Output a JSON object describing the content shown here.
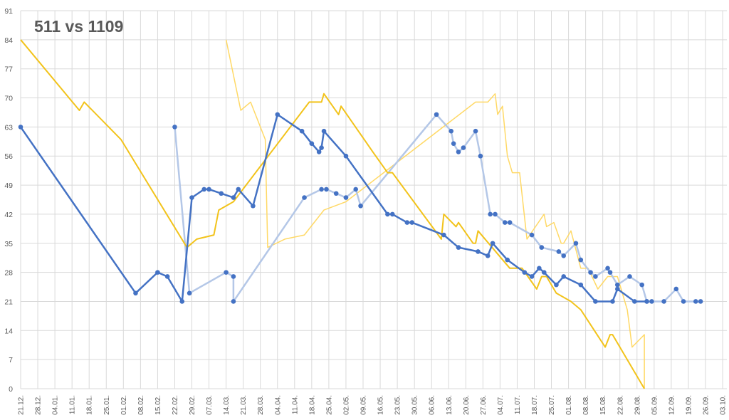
{
  "chart_data": {
    "type": "line",
    "title": "511 vs 1109",
    "xlabel": "",
    "ylabel": "",
    "ylim": [
      0,
      91
    ],
    "yticks": [
      0,
      7,
      14,
      21,
      28,
      35,
      42,
      49,
      56,
      63,
      70,
      77,
      84,
      91
    ],
    "xticks": [
      "21.12.",
      "28.12.",
      "04.01.",
      "11.01.",
      "18.01.",
      "25.01.",
      "01.02.",
      "08.02.",
      "15.02.",
      "22.02.",
      "29.02.",
      "07.03.",
      "14.03.",
      "21.03.",
      "28.03.",
      "04.04.",
      "11.04.",
      "18.04.",
      "25.04.",
      "02.05.",
      "09.05.",
      "16.05.",
      "23.05.",
      "30.05.",
      "06.06.",
      "13.06.",
      "20.06.",
      "27.06.",
      "04.07.",
      "11.07.",
      "18.07.",
      "25.07.",
      "01.08.",
      "08.08.",
      "15.08.",
      "22.08.",
      "29.08.",
      "05.09.",
      "12.09.",
      "19.09.",
      "26.09.",
      "03.10."
    ],
    "grid": true,
    "legend": "none",
    "series": [
      {
        "color": "#4472C4",
        "width": 2.5,
        "markers": true,
        "points": [
          [
            "21.12.",
            63
          ],
          [
            "06.02.",
            23
          ],
          [
            "15.02.",
            28
          ],
          [
            "19.02.",
            27
          ],
          [
            "25.02.",
            21
          ],
          [
            "29.02.",
            46
          ],
          [
            "05.03.",
            48
          ],
          [
            "07.03.",
            48
          ],
          [
            "12.03.",
            47
          ],
          [
            "17.03.",
            46
          ],
          [
            "19.03.",
            48
          ],
          [
            "25.03.",
            44
          ],
          [
            "04.04.",
            66
          ],
          [
            "14.04.",
            62
          ],
          [
            "18.04.",
            59
          ],
          [
            "21.04.",
            57
          ],
          [
            "22.04.",
            58
          ],
          [
            "23.04.",
            62
          ],
          [
            "02.05.",
            56
          ],
          [
            "19.05.",
            42
          ],
          [
            "21.05.",
            42
          ],
          [
            "27.05.",
            40
          ],
          [
            "29.05.",
            40
          ],
          [
            "11.06.",
            37
          ],
          [
            "17.06.",
            34
          ],
          [
            "25.06.",
            33
          ],
          [
            "29.06.",
            32
          ],
          [
            "01.07.",
            35
          ],
          [
            "07.07.",
            31
          ],
          [
            "14.07.",
            28
          ],
          [
            "17.07.",
            27
          ],
          [
            "20.07.",
            29
          ],
          [
            "22.07.",
            28
          ],
          [
            "27.07.",
            25
          ],
          [
            "30.07.",
            27
          ],
          [
            "06.08.",
            25
          ],
          [
            "12.08.",
            21
          ],
          [
            "19.08.",
            21
          ],
          [
            "21.08.",
            24
          ],
          [
            "28.08.",
            21
          ],
          [
            "02.09.",
            21
          ]
        ]
      },
      {
        "color": "#B4C7E7",
        "width": 2.5,
        "markers": true,
        "points": [
          [
            "22.02.",
            63
          ],
          [
            "28.02.",
            23
          ],
          [
            "14.03.",
            28
          ],
          [
            "17.03.",
            27
          ],
          [
            "17.03.",
            21
          ],
          [
            "15.04.",
            46
          ],
          [
            "22.04.",
            48
          ],
          [
            "24.04.",
            48
          ],
          [
            "28.04.",
            47
          ],
          [
            "02.05.",
            46
          ],
          [
            "06.05.",
            48
          ],
          [
            "08.05.",
            44
          ],
          [
            "08.06.",
            66
          ],
          [
            "14.06.",
            62
          ],
          [
            "15.06.",
            59
          ],
          [
            "17.06.",
            57
          ],
          [
            "19.06.",
            58
          ],
          [
            "24.06.",
            62
          ],
          [
            "26.06.",
            56
          ],
          [
            "30.06.",
            42
          ],
          [
            "02.07.",
            42
          ],
          [
            "06.07.",
            40
          ],
          [
            "08.07.",
            40
          ],
          [
            "17.07.",
            37
          ],
          [
            "21.07.",
            34
          ],
          [
            "28.07.",
            33
          ],
          [
            "30.07.",
            32
          ],
          [
            "04.08.",
            35
          ],
          [
            "06.08.",
            31
          ],
          [
            "10.08.",
            28
          ],
          [
            "12.08.",
            27
          ],
          [
            "17.08.",
            29
          ],
          [
            "18.08.",
            28
          ],
          [
            "21.08.",
            25
          ],
          [
            "26.08.",
            27
          ],
          [
            "31.08.",
            25
          ],
          [
            "02.09.",
            21
          ],
          [
            "04.09.",
            21
          ],
          [
            "09.09.",
            21
          ],
          [
            "14.09.",
            24
          ],
          [
            "17.09.",
            21
          ],
          [
            "22.09.",
            21
          ],
          [
            "24.09.",
            21
          ]
        ]
      },
      {
        "color": "#F2C31B",
        "width": 2,
        "markers": false,
        "points": [
          [
            "21.12.",
            84
          ],
          [
            "14.01.",
            67
          ],
          [
            "16.01.",
            69
          ],
          [
            "31.01.",
            60
          ],
          [
            "27.02.",
            34
          ],
          [
            "02.03.",
            36
          ],
          [
            "09.03.",
            37
          ],
          [
            "11.03.",
            43
          ],
          [
            "17.03.",
            45
          ],
          [
            "17.04.",
            69
          ],
          [
            "22.04.",
            69
          ],
          [
            "23.04.",
            71
          ],
          [
            "29.04.",
            66
          ],
          [
            "30.04.",
            68
          ],
          [
            "13.05.",
            57
          ],
          [
            "19.05.",
            52
          ],
          [
            "21.05.",
            52
          ],
          [
            "10.06.",
            36
          ],
          [
            "11.06.",
            42
          ],
          [
            "16.06.",
            39
          ],
          [
            "17.06.",
            40
          ],
          [
            "23.06.",
            35
          ],
          [
            "24.06.",
            35
          ],
          [
            "25.06.",
            38
          ],
          [
            "08.07.",
            29
          ],
          [
            "13.07.",
            29
          ],
          [
            "19.07.",
            24
          ],
          [
            "21.07.",
            27
          ],
          [
            "23.07.",
            27
          ],
          [
            "27.07.",
            23
          ],
          [
            "02.08.",
            21
          ],
          [
            "06.08.",
            19
          ],
          [
            "16.08.",
            10
          ],
          [
            "18.08.",
            13
          ],
          [
            "19.08.",
            13
          ],
          [
            "01.09.",
            0
          ]
        ]
      },
      {
        "color": "#FFD966",
        "width": 1.5,
        "markers": false,
        "points": [
          [
            "14.03.",
            84
          ],
          [
            "20.03.",
            67
          ],
          [
            "24.03.",
            69
          ],
          [
            "30.03.",
            60
          ],
          [
            "31.03.",
            34
          ],
          [
            "07.04.",
            36
          ],
          [
            "15.04.",
            37
          ],
          [
            "23.04.",
            43
          ],
          [
            "02.05.",
            45
          ],
          [
            "24.06.",
            69
          ],
          [
            "29.06.",
            69
          ],
          [
            "02.07.",
            71
          ],
          [
            "03.07.",
            66
          ],
          [
            "05.07.",
            68
          ],
          [
            "07.07.",
            56
          ],
          [
            "09.07.",
            52
          ],
          [
            "12.07.",
            52
          ],
          [
            "15.07.",
            36
          ],
          [
            "22.07.",
            42
          ],
          [
            "23.07.",
            39
          ],
          [
            "26.07.",
            40
          ],
          [
            "29.07.",
            35
          ],
          [
            "30.07.",
            35
          ],
          [
            "02.08.",
            38
          ],
          [
            "06.08.",
            29
          ],
          [
            "09.08.",
            29
          ],
          [
            "13.08.",
            24
          ],
          [
            "17.08.",
            27
          ],
          [
            "21.08.",
            27
          ],
          [
            "25.08.",
            19
          ],
          [
            "27.08.",
            10
          ],
          [
            "01.09.",
            13
          ],
          [
            "01.09.",
            0
          ]
        ]
      }
    ]
  }
}
